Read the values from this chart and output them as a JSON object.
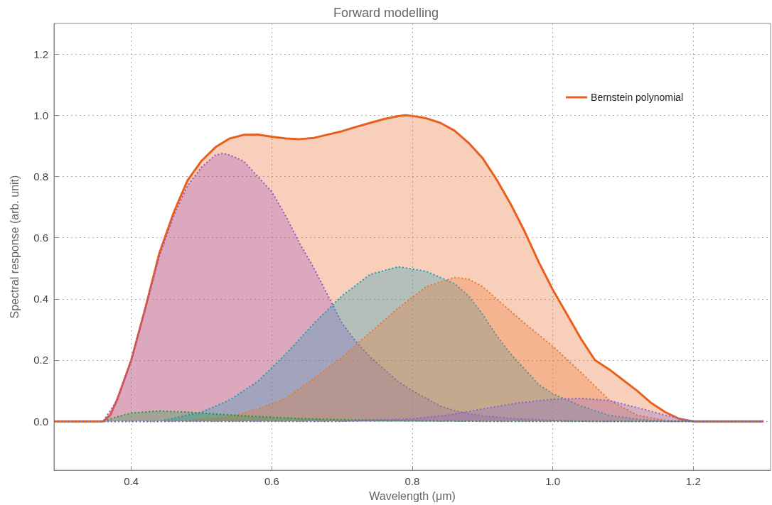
{
  "chart_data": {
    "type": "area",
    "title": "Forward modelling",
    "xlabel": "Wavelength (μm)",
    "ylabel": "Spectral response (arb. unit)",
    "xlim": [
      0.29,
      1.31
    ],
    "xticks": [
      0.4,
      0.6,
      0.8,
      {
        "value": 1.0,
        "label": "1.0"
      },
      1.2
    ],
    "ylim": [
      -0.16,
      1.3
    ],
    "yticks": [
      {
        "value": 0,
        "label": "0.0"
      },
      0.2,
      0.4,
      0.6,
      0.8,
      {
        "value": 1.0,
        "label": "1.0"
      },
      1.2
    ],
    "grid": true,
    "legend": "top right",
    "marker": "none",
    "series": [
      {
        "name": "Bernstein polynomial",
        "color": "#e8601c",
        "line_style": "solid",
        "x": [
          0.29,
          0.36,
          0.37,
          0.38,
          0.4,
          0.42,
          0.44,
          0.46,
          0.48,
          0.5,
          0.52,
          0.54,
          0.56,
          0.58,
          0.6,
          0.62,
          0.64,
          0.66,
          0.68,
          0.7,
          0.72,
          0.74,
          0.76,
          0.78,
          0.79,
          0.8,
          0.82,
          0.84,
          0.86,
          0.88,
          0.9,
          0.92,
          0.94,
          0.96,
          0.98,
          1.0,
          1.02,
          1.04,
          1.06,
          1.08,
          1.1,
          1.12,
          1.14,
          1.16,
          1.18,
          1.2,
          1.3
        ],
        "values": [
          0,
          0,
          0.02,
          0.072,
          0.2,
          0.37,
          0.55,
          0.68,
          0.787,
          0.851,
          0.896,
          0.924,
          0.936,
          0.937,
          0.93,
          0.924,
          0.922,
          0.926,
          0.937,
          0.948,
          0.962,
          0.975,
          0.988,
          0.997,
          1.0,
          0.998,
          0.99,
          0.975,
          0.95,
          0.91,
          0.86,
          0.79,
          0.71,
          0.62,
          0.52,
          0.43,
          0.35,
          0.27,
          0.2,
          0.17,
          0.135,
          0.1,
          0.06,
          0.03,
          0.008,
          0,
          0
        ]
      },
      {
        "color": "#9b4fc6",
        "line_style": "dotted",
        "x": [
          0.29,
          0.36,
          0.38,
          0.4,
          0.42,
          0.44,
          0.46,
          0.48,
          0.5,
          0.52,
          0.53,
          0.54,
          0.56,
          0.58,
          0.6,
          0.62,
          0.64,
          0.66,
          0.68,
          0.7,
          0.72,
          0.74,
          0.76,
          0.78,
          0.8,
          0.82,
          0.84,
          0.86,
          0.88,
          0.9,
          0.95,
          1.0,
          1.05,
          1.3
        ],
        "values": [
          0,
          0,
          0.07,
          0.2,
          0.37,
          0.54,
          0.67,
          0.77,
          0.83,
          0.87,
          0.875,
          0.87,
          0.85,
          0.8,
          0.75,
          0.67,
          0.58,
          0.5,
          0.41,
          0.32,
          0.26,
          0.21,
          0.17,
          0.13,
          0.1,
          0.075,
          0.05,
          0.035,
          0.025,
          0.018,
          0.008,
          0.003,
          0,
          0
        ]
      },
      {
        "color": "#1b9cb8",
        "line_style": "dotted",
        "x": [
          0.29,
          0.44,
          0.46,
          0.5,
          0.54,
          0.58,
          0.62,
          0.66,
          0.7,
          0.74,
          0.78,
          0.82,
          0.86,
          0.88,
          0.9,
          0.92,
          0.94,
          0.96,
          0.98,
          1.0,
          1.04,
          1.08,
          1.12,
          1.16,
          1.3
        ],
        "values": [
          0,
          0,
          0.01,
          0.03,
          0.07,
          0.13,
          0.22,
          0.32,
          0.41,
          0.48,
          0.505,
          0.49,
          0.45,
          0.41,
          0.35,
          0.28,
          0.22,
          0.17,
          0.12,
          0.09,
          0.05,
          0.02,
          0.007,
          0,
          0
        ]
      },
      {
        "color": "#e8782a",
        "line_style": "dotted",
        "x": [
          0.29,
          0.46,
          0.5,
          0.54,
          0.58,
          0.62,
          0.66,
          0.7,
          0.74,
          0.78,
          0.82,
          0.86,
          0.88,
          0.9,
          0.92,
          0.96,
          1.0,
          1.04,
          1.08,
          1.12,
          1.16,
          1.2,
          1.3
        ],
        "values": [
          0,
          0,
          0.005,
          0.015,
          0.04,
          0.075,
          0.14,
          0.21,
          0.29,
          0.37,
          0.44,
          0.47,
          0.465,
          0.44,
          0.4,
          0.32,
          0.245,
          0.16,
          0.07,
          0.02,
          0.003,
          0,
          0
        ]
      },
      {
        "color": "#1a9a3a",
        "line_style": "dotted",
        "x": [
          0.29,
          0.36,
          0.38,
          0.4,
          0.44,
          0.48,
          0.52,
          0.56,
          0.6,
          0.64,
          0.7,
          0.8,
          0.9,
          1.3
        ],
        "values": [
          0,
          0,
          0.015,
          0.027,
          0.034,
          0.03,
          0.024,
          0.018,
          0.013,
          0.009,
          0.005,
          0.002,
          0,
          0
        ]
      },
      {
        "color": "#8466d0",
        "line_style": "dotted",
        "x": [
          0.29,
          0.7,
          0.8,
          0.85,
          0.9,
          0.95,
          1.0,
          1.04,
          1.08,
          1.12,
          1.16,
          1.2,
          1.3
        ],
        "values": [
          0,
          0,
          0.008,
          0.02,
          0.04,
          0.06,
          0.072,
          0.075,
          0.068,
          0.045,
          0.02,
          0,
          0
        ]
      }
    ]
  }
}
